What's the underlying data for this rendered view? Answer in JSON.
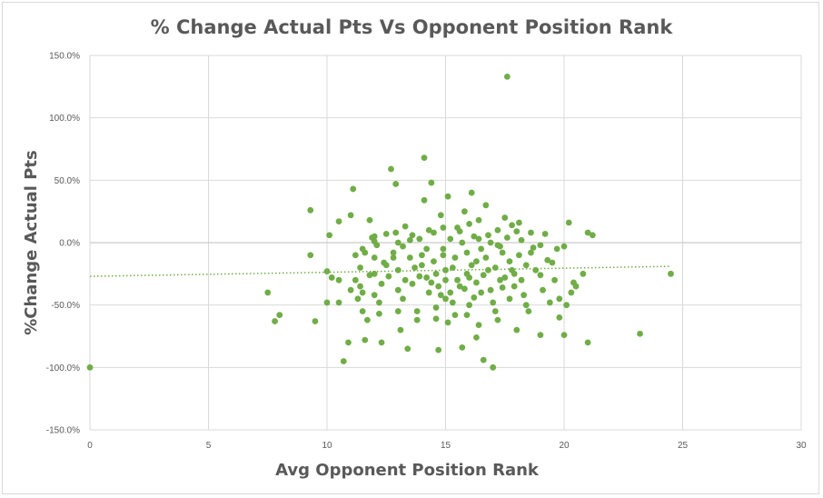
{
  "chart_data": {
    "type": "scatter",
    "title": "% Change Actual Pts Vs Opponent Position Rank",
    "xlabel": "Avg Opponent Position Rank",
    "ylabel": "%Change Actual Pts",
    "xlim": [
      0,
      30
    ],
    "ylim": [
      -150,
      150
    ],
    "x_ticks": [
      "0",
      "5",
      "10",
      "15",
      "20",
      "25",
      "30"
    ],
    "y_ticks": [
      "150.0%",
      "100.0%",
      "50.0%",
      "0.0%",
      "-50.0%",
      "-100.0%",
      "-150.0%"
    ],
    "grid": true,
    "trendline": {
      "type": "linear",
      "style": "dotted",
      "from": [
        0,
        -27
      ],
      "to": [
        24.5,
        -19
      ]
    },
    "marker_color": "#70ad47",
    "points": [
      [
        0,
        -100
      ],
      [
        7.5,
        -40
      ],
      [
        7.8,
        -63
      ],
      [
        8,
        -58
      ],
      [
        9.3,
        -10
      ],
      [
        9.3,
        26
      ],
      [
        9.5,
        -63
      ],
      [
        10,
        -23
      ],
      [
        10,
        -48
      ],
      [
        10.1,
        6
      ],
      [
        10.2,
        -28
      ],
      [
        10.5,
        17
      ],
      [
        10.5,
        -30
      ],
      [
        10.5,
        -48
      ],
      [
        10.7,
        -95
      ],
      [
        10.9,
        -80
      ],
      [
        11,
        22
      ],
      [
        11,
        -38
      ],
      [
        11.1,
        43
      ],
      [
        11.2,
        -10
      ],
      [
        11.3,
        -45
      ],
      [
        11.4,
        -20
      ],
      [
        11.4,
        -35
      ],
      [
        11.5,
        -5
      ],
      [
        11.5,
        -55
      ],
      [
        11.6,
        -78
      ],
      [
        11.7,
        -62
      ],
      [
        11.8,
        18
      ],
      [
        11.9,
        4
      ],
      [
        12,
        1
      ],
      [
        12,
        -12
      ],
      [
        12,
        -25
      ],
      [
        12,
        -42
      ],
      [
        12.2,
        -57
      ],
      [
        12.3,
        -80
      ],
      [
        12.4,
        -16
      ],
      [
        12.5,
        7
      ],
      [
        12.6,
        -27
      ],
      [
        12.7,
        59
      ],
      [
        12.8,
        -8
      ],
      [
        12.9,
        47
      ],
      [
        13,
        -22
      ],
      [
        13,
        -38
      ],
      [
        13.1,
        -70
      ],
      [
        13.2,
        -3
      ],
      [
        13.3,
        13
      ],
      [
        13.4,
        -85
      ],
      [
        13.5,
        -12
      ],
      [
        13.6,
        -33
      ],
      [
        13.8,
        -55
      ],
      [
        13.9,
        3
      ],
      [
        14,
        -18
      ],
      [
        14.1,
        34
      ],
      [
        14.1,
        68
      ],
      [
        14.2,
        -5
      ],
      [
        14.3,
        -40
      ],
      [
        14.4,
        48
      ],
      [
        14.5,
        8
      ],
      [
        14.6,
        -25
      ],
      [
        14.6,
        -61
      ],
      [
        14.7,
        -86
      ],
      [
        14.8,
        22
      ],
      [
        14.9,
        -10
      ],
      [
        15,
        -30
      ],
      [
        15,
        -45
      ],
      [
        15.1,
        37
      ],
      [
        15.2,
        3
      ],
      [
        15.3,
        -20
      ],
      [
        15.4,
        -58
      ],
      [
        15.5,
        12
      ],
      [
        15.6,
        -35
      ],
      [
        15.7,
        -84
      ],
      [
        15.8,
        25
      ],
      [
        15.9,
        -8
      ],
      [
        16,
        -28
      ],
      [
        16,
        -50
      ],
      [
        16.1,
        40
      ],
      [
        16.2,
        5
      ],
      [
        16.3,
        -15
      ],
      [
        16.3,
        -76
      ],
      [
        16.4,
        18
      ],
      [
        16.5,
        -40
      ],
      [
        16.6,
        -94
      ],
      [
        16.7,
        30
      ],
      [
        16.8,
        -22
      ],
      [
        16.9,
        0
      ],
      [
        17,
        -100
      ],
      [
        17.1,
        -55
      ],
      [
        17.2,
        10
      ],
      [
        17.3,
        -30
      ],
      [
        17.4,
        -8
      ],
      [
        17.5,
        20
      ],
      [
        17.6,
        133
      ],
      [
        17.7,
        -45
      ],
      [
        17.8,
        14
      ],
      [
        17.9,
        -25
      ],
      [
        18,
        -70
      ],
      [
        18.1,
        16
      ],
      [
        18.2,
        2
      ],
      [
        18.3,
        -42
      ],
      [
        18.5,
        -55
      ],
      [
        18.6,
        8
      ],
      [
        18.8,
        -22
      ],
      [
        19,
        -2
      ],
      [
        19,
        -74
      ],
      [
        19.2,
        7
      ],
      [
        19.4,
        -48
      ],
      [
        19.6,
        -30
      ],
      [
        19.8,
        -60
      ],
      [
        20,
        -3
      ],
      [
        20,
        -74
      ],
      [
        20.1,
        -50
      ],
      [
        20.2,
        16
      ],
      [
        20.3,
        -40
      ],
      [
        20.5,
        -35
      ],
      [
        20.8,
        -25
      ],
      [
        21,
        8
      ],
      [
        21,
        -80
      ],
      [
        21.2,
        6
      ],
      [
        23.2,
        -73
      ],
      [
        24.5,
        -25
      ],
      [
        11.6,
        -8
      ],
      [
        12.1,
        -2
      ],
      [
        12.3,
        -33
      ],
      [
        12.8,
        -12
      ],
      [
        13.0,
        0
      ],
      [
        13.3,
        -30
      ],
      [
        13.5,
        2
      ],
      [
        13.7,
        -20
      ],
      [
        14.0,
        -10
      ],
      [
        14.2,
        -28
      ],
      [
        14.5,
        -15
      ],
      [
        14.7,
        -35
      ],
      [
        14.9,
        -5
      ],
      [
        15.0,
        -22
      ],
      [
        15.2,
        -40
      ],
      [
        15.4,
        -12
      ],
      [
        15.5,
        -30
      ],
      [
        15.7,
        0
      ],
      [
        15.9,
        -25
      ],
      [
        16.1,
        -18
      ],
      [
        16.3,
        -32
      ],
      [
        16.5,
        -5
      ],
      [
        16.7,
        -12
      ],
      [
        16.9,
        -38
      ],
      [
        17.1,
        -20
      ],
      [
        17.3,
        -3
      ],
      [
        17.5,
        -28
      ],
      [
        17.7,
        -15
      ],
      [
        17.9,
        -35
      ],
      [
        18.1,
        -10
      ],
      [
        18.4,
        -18
      ],
      [
        18.7,
        -4
      ],
      [
        19.0,
        -26
      ],
      [
        19.3,
        -14
      ],
      [
        19.7,
        -5
      ],
      [
        11.8,
        -26
      ],
      [
        12.5,
        -18
      ],
      [
        13.2,
        -45
      ],
      [
        13.9,
        -27
      ],
      [
        14.4,
        -32
      ],
      [
        14.8,
        -42
      ],
      [
        15.3,
        -48
      ],
      [
        15.8,
        -37
      ],
      [
        16.2,
        -44
      ],
      [
        16.6,
        -26
      ],
      [
        17.0,
        -48
      ],
      [
        17.4,
        -36
      ],
      [
        17.8,
        -22
      ],
      [
        18.2,
        -30
      ],
      [
        12.0,
        5
      ],
      [
        12.9,
        8
      ],
      [
        13.6,
        6
      ],
      [
        14.3,
        10
      ],
      [
        14.9,
        12
      ],
      [
        15.6,
        9
      ],
      [
        16.0,
        15
      ],
      [
        16.4,
        3
      ],
      [
        16.8,
        6
      ],
      [
        17.2,
        -2
      ],
      [
        17.6,
        4
      ],
      [
        18.0,
        9
      ],
      [
        18.6,
        -8
      ],
      [
        19.5,
        -16
      ],
      [
        11.2,
        -30
      ],
      [
        11.5,
        -40
      ],
      [
        12.2,
        -48
      ],
      [
        13.0,
        -55
      ],
      [
        13.8,
        -62
      ],
      [
        14.6,
        -52
      ],
      [
        15.1,
        -64
      ],
      [
        15.9,
        -58
      ],
      [
        16.4,
        -66
      ],
      [
        17.2,
        -62
      ],
      [
        18.4,
        -50
      ],
      [
        19.1,
        -38
      ],
      [
        19.8,
        -45
      ],
      [
        20.4,
        -32
      ]
    ]
  }
}
